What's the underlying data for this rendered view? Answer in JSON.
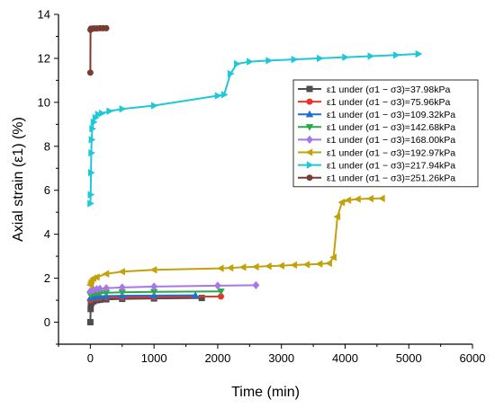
{
  "chart_data": {
    "type": "line",
    "xlabel": "Time (min)",
    "ylabel": "Axial strain (ε1) (%)",
    "xlim": [
      -500,
      6000
    ],
    "ylim": [
      -1,
      14
    ],
    "xticks": [
      0,
      1000,
      2000,
      3000,
      4000,
      5000,
      6000
    ],
    "yticks": [
      0,
      2,
      4,
      6,
      8,
      10,
      12,
      14
    ],
    "xtick_labels": [
      "0",
      "1000",
      "2000",
      "3000",
      "4000",
      "5000",
      "6000"
    ],
    "ytick_labels": [
      "0",
      "2",
      "4",
      "6",
      "8",
      "10",
      "12",
      "14"
    ],
    "grid": false,
    "legend_position": "right, upper-middle",
    "series": [
      {
        "name": "ε1 under (σ1 − σ3)=37.98kPa",
        "color": "#4d4d4d",
        "marker": "square",
        "points": [
          [
            0,
            0
          ],
          [
            5,
            0.6
          ],
          [
            10,
            0.85
          ],
          [
            20,
            0.9
          ],
          [
            50,
            0.95
          ],
          [
            100,
            1.0
          ],
          [
            150,
            1.02
          ],
          [
            250,
            1.04
          ],
          [
            500,
            1.06
          ],
          [
            1000,
            1.08
          ],
          [
            1750,
            1.1
          ]
        ]
      },
      {
        "name": "ε1 under (σ1 − σ3)=75.96kPa",
        "color": "#e8322a",
        "marker": "circle",
        "points": [
          [
            0,
            1.0
          ],
          [
            20,
            1.05
          ],
          [
            50,
            1.08
          ],
          [
            100,
            1.1
          ],
          [
            150,
            1.11
          ],
          [
            250,
            1.12
          ],
          [
            500,
            1.13
          ],
          [
            1000,
            1.14
          ],
          [
            2050,
            1.17
          ]
        ]
      },
      {
        "name": "ε1 under (σ1 − σ3)=109.32kPa",
        "color": "#1f6fd1",
        "marker": "triangle-up",
        "points": [
          [
            0,
            1.1
          ],
          [
            20,
            1.13
          ],
          [
            50,
            1.15
          ],
          [
            100,
            1.17
          ],
          [
            150,
            1.18
          ],
          [
            250,
            1.19
          ],
          [
            500,
            1.2
          ],
          [
            1000,
            1.21
          ],
          [
            1650,
            1.22
          ]
        ]
      },
      {
        "name": "ε1 under (σ1 − σ3)=142.68kPa",
        "color": "#2aa84a",
        "marker": "triangle-down",
        "points": [
          [
            0,
            1.25
          ],
          [
            20,
            1.28
          ],
          [
            50,
            1.3
          ],
          [
            100,
            1.31
          ],
          [
            150,
            1.32
          ],
          [
            250,
            1.34
          ],
          [
            500,
            1.36
          ],
          [
            1000,
            1.38
          ],
          [
            2050,
            1.4
          ]
        ]
      },
      {
        "name": "ε1 under (σ1 − σ3)=168.00kPa",
        "color": "#a876e6",
        "marker": "diamond",
        "points": [
          [
            0,
            1.4
          ],
          [
            20,
            1.45
          ],
          [
            50,
            1.48
          ],
          [
            100,
            1.5
          ],
          [
            150,
            1.52
          ],
          [
            250,
            1.55
          ],
          [
            500,
            1.58
          ],
          [
            1000,
            1.62
          ],
          [
            2000,
            1.66
          ],
          [
            2600,
            1.68
          ]
        ]
      },
      {
        "name": "ε1 under (σ1 − σ3)=192.97kPa",
        "color": "#c2a20a",
        "marker": "triangle-left",
        "points": [
          [
            0,
            1.7
          ],
          [
            10,
            1.8
          ],
          [
            20,
            1.9
          ],
          [
            50,
            2.0
          ],
          [
            100,
            2.05
          ],
          [
            250,
            2.2
          ],
          [
            500,
            2.3
          ],
          [
            1000,
            2.38
          ],
          [
            2050,
            2.45
          ],
          [
            2200,
            2.47
          ],
          [
            2400,
            2.5
          ],
          [
            2600,
            2.52
          ],
          [
            2800,
            2.55
          ],
          [
            3000,
            2.57
          ],
          [
            3200,
            2.6
          ],
          [
            3400,
            2.62
          ],
          [
            3600,
            2.65
          ],
          [
            3750,
            2.68
          ],
          [
            3820,
            2.95
          ],
          [
            3880,
            4.8
          ],
          [
            3950,
            5.45
          ],
          [
            4050,
            5.55
          ],
          [
            4200,
            5.6
          ],
          [
            4400,
            5.62
          ],
          [
            4580,
            5.63
          ]
        ]
      },
      {
        "name": "ε1 under (σ1 − σ3)=217.94kPa",
        "color": "#1ec8d8",
        "marker": "triangle-right",
        "points": [
          [
            0,
            5.4
          ],
          [
            5,
            5.8
          ],
          [
            10,
            6.8
          ],
          [
            15,
            7.7
          ],
          [
            20,
            8.3
          ],
          [
            30,
            8.8
          ],
          [
            50,
            9.1
          ],
          [
            80,
            9.3
          ],
          [
            120,
            9.45
          ],
          [
            180,
            9.5
          ],
          [
            300,
            9.6
          ],
          [
            500,
            9.7
          ],
          [
            1000,
            9.85
          ],
          [
            2000,
            10.3
          ],
          [
            2100,
            10.35
          ],
          [
            2200,
            11.3
          ],
          [
            2300,
            11.75
          ],
          [
            2500,
            11.85
          ],
          [
            2800,
            11.9
          ],
          [
            3200,
            11.95
          ],
          [
            3600,
            12.0
          ],
          [
            4000,
            12.05
          ],
          [
            4400,
            12.1
          ],
          [
            4800,
            12.15
          ],
          [
            5150,
            12.2
          ]
        ]
      },
      {
        "name": "ε1 under (σ1 − σ3)=251.26kPa",
        "color": "#7a3b32",
        "marker": "circle",
        "points": [
          [
            0,
            11.35
          ],
          [
            3,
            13.3
          ],
          [
            10,
            13.35
          ],
          [
            30,
            13.35
          ],
          [
            60,
            13.36
          ],
          [
            100,
            13.36
          ],
          [
            150,
            13.37
          ],
          [
            200,
            13.37
          ],
          [
            250,
            13.37
          ]
        ]
      }
    ]
  }
}
